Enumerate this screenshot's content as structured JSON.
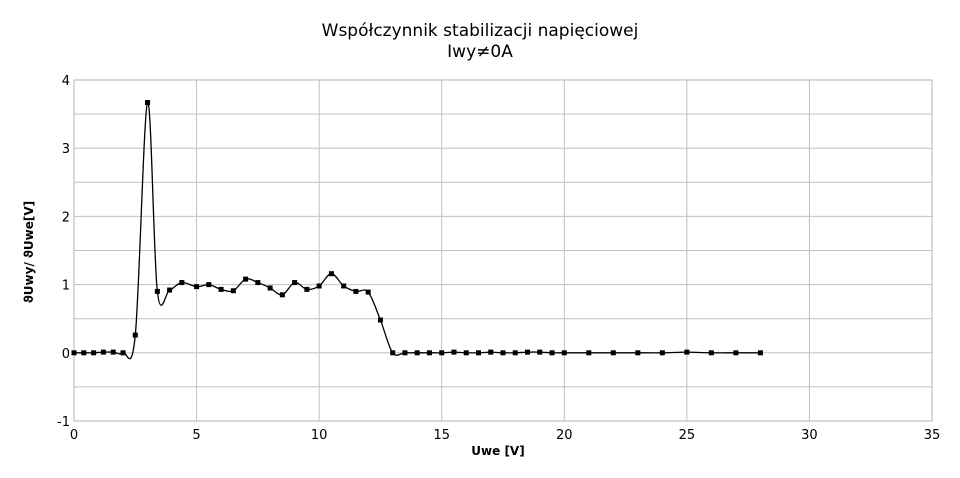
{
  "chart_data": {
    "type": "line",
    "title": "Współczynnik stabilizacji napięciowej",
    "subtitle": "Iwy≠0A",
    "xlabel": "Uwe [V]",
    "ylabel": "ϑUwy/ ϑUwe[V]",
    "xlim": [
      0,
      35
    ],
    "ylim": [
      -1,
      4
    ],
    "x_ticks": [
      "0",
      "5",
      "10",
      "15",
      "20",
      "25",
      "30",
      "35"
    ],
    "y_ticks": [
      "-1",
      "0",
      "1",
      "2",
      "3",
      "4"
    ],
    "grid": true,
    "smoothed": true,
    "series_color": "#000000",
    "grid_color": "#c0c0c0",
    "series": [
      {
        "x": [
          0,
          0.4,
          0.8,
          1.2,
          1.6,
          2,
          2.5,
          3,
          3.4,
          3.9,
          4.4,
          5,
          5.5,
          6,
          6.5,
          7,
          7.5,
          8,
          8.5,
          9,
          9.5,
          10,
          10.5,
          11,
          11.5,
          12,
          12.5,
          13,
          13.5,
          14,
          14.5,
          15,
          15.5,
          16,
          16.5,
          17,
          17.5,
          18,
          18.5,
          19,
          19.5,
          20,
          21,
          22,
          23,
          24,
          25,
          26,
          27,
          28
        ],
        "y": [
          0,
          0,
          0,
          0.01,
          0.01,
          0,
          0.26,
          3.67,
          0.9,
          0.92,
          1.03,
          0.97,
          1.0,
          0.93,
          0.91,
          1.08,
          1.03,
          0.95,
          0.85,
          1.03,
          0.93,
          0.98,
          1.16,
          0.98,
          0.9,
          0.89,
          0.48,
          0,
          0,
          0,
          0,
          0,
          0.01,
          0,
          0,
          0.01,
          0,
          0,
          0.01,
          0.01,
          0,
          0,
          0,
          0,
          0,
          0,
          0.01,
          0,
          0,
          0
        ]
      }
    ]
  }
}
